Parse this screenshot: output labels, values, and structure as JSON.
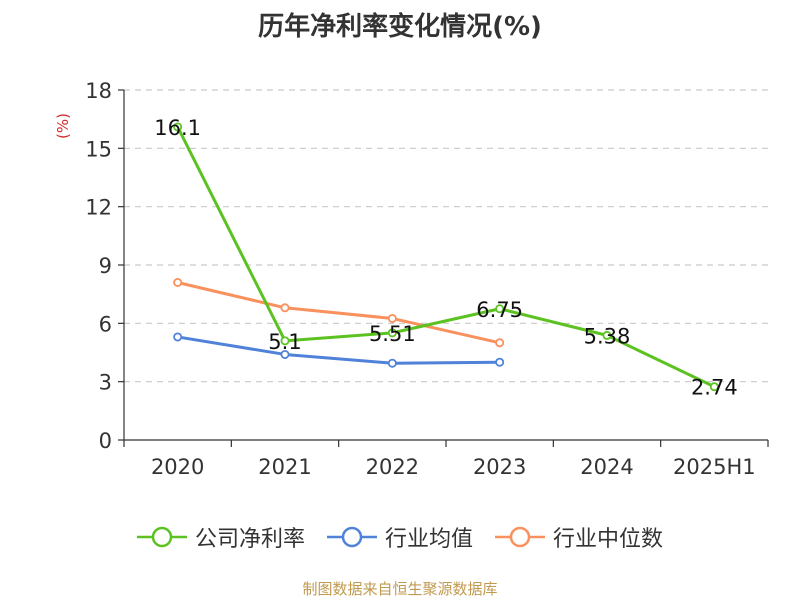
{
  "title": "历年净利率变化情况(%)",
  "source": "制图数据来自恒生聚源数据库",
  "colors": {
    "company": "#5bc221",
    "industry_avg": "#4f82d8",
    "industry_median": "#f8915d",
    "ylabel": "#d62b2b",
    "axis": "#333333",
    "grid": "#c9c9c9"
  },
  "chart_data": {
    "type": "line",
    "title": "历年净利率变化情况(%)",
    "ylabel": "(%)",
    "xlabel": "",
    "categories": [
      "2020",
      "2021",
      "2022",
      "2023",
      "2024",
      "2025H1"
    ],
    "ylim": [
      0,
      18
    ],
    "yticks": [
      0,
      3,
      6,
      9,
      12,
      15,
      18
    ],
    "grid": true,
    "legend_position": "bottom",
    "series": [
      {
        "name": "公司净利率",
        "color": "#5bc221",
        "values": [
          16.1,
          5.1,
          5.51,
          6.75,
          5.38,
          2.74
        ],
        "labels": [
          "16.1",
          "5.1",
          "5.51",
          "6.75",
          "5.38",
          "2.74"
        ],
        "show_labels": true
      },
      {
        "name": "行业均值",
        "color": "#4f82d8",
        "values": [
          5.3,
          4.4,
          3.95,
          4.0,
          null,
          null
        ],
        "show_labels": false
      },
      {
        "name": "行业中位数",
        "color": "#f8915d",
        "values": [
          8.1,
          6.8,
          6.25,
          5.0,
          null,
          null
        ],
        "show_labels": false
      }
    ]
  }
}
